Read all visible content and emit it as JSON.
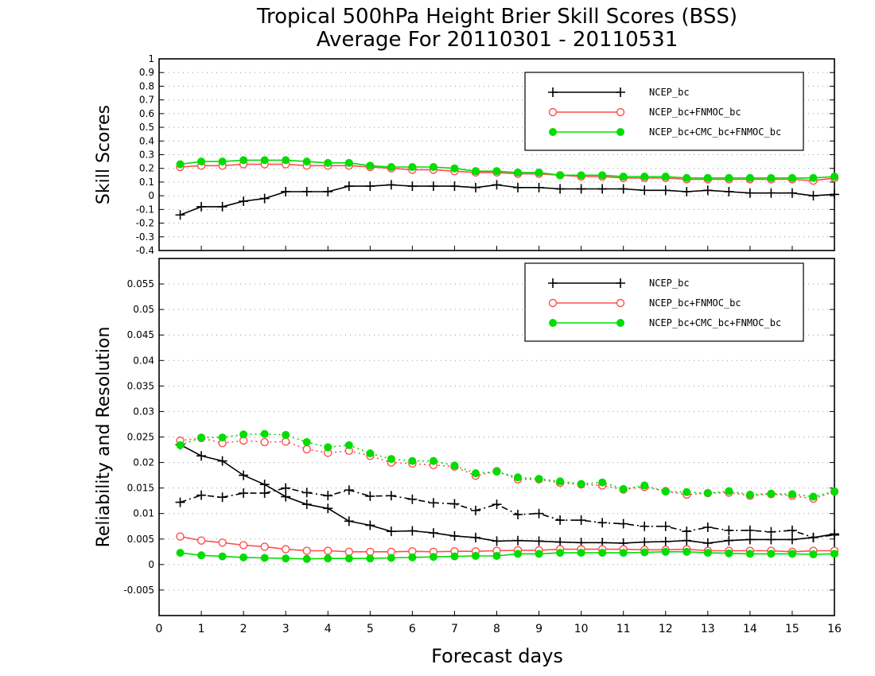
{
  "chart_data": {
    "title_line1": "Tropical 500hPa Height Brier Skill Scores (BSS)",
    "title_line2": "Average For 20110301 - 20110531",
    "xlabel": "Forecast days",
    "x_ticks": [
      "0",
      "1",
      "2",
      "3",
      "4",
      "5",
      "6",
      "7",
      "8",
      "9",
      "10",
      "11",
      "12",
      "13",
      "14",
      "15",
      "16"
    ],
    "xlim": [
      0,
      16
    ],
    "x": [
      0.5,
      1,
      1.5,
      2,
      2.5,
      3,
      3.5,
      4,
      4.5,
      5,
      5.5,
      6,
      6.5,
      7,
      7.5,
      8,
      8.5,
      9,
      9.5,
      10,
      10.5,
      11,
      11.5,
      12,
      12.5,
      13,
      13.5,
      14,
      14.5,
      15,
      15.5,
      16
    ],
    "colors": {
      "NCEP_bc": "#000000",
      "NCEP_bc+FNMOC_bc": "#ff4d4d",
      "NCEP_bc+CMC_bc+FNMOC_bc": "#00dd00"
    },
    "panels": [
      {
        "type": "line",
        "ylabel": "Skill Scores",
        "ylim": [
          -0.4,
          1
        ],
        "y_ticks": [
          "-0.4",
          "-0.3",
          "-0.2",
          "-0.1",
          "0",
          "0.1",
          "0.2",
          "0.3",
          "0.4",
          "0.5",
          "0.6",
          "0.7",
          "0.8",
          "0.9",
          "1"
        ],
        "grid": true,
        "legend": [
          "NCEP_bc",
          "NCEP_bc+FNMOC_bc",
          "NCEP_bc+CMC_bc+FNMOC_bc"
        ],
        "series": [
          {
            "name": "NCEP_bc",
            "marker": "plus",
            "style": "solid",
            "values": [
              -0.14,
              -0.08,
              -0.08,
              -0.04,
              -0.02,
              0.03,
              0.03,
              0.03,
              0.07,
              0.07,
              0.08,
              0.07,
              0.07,
              0.07,
              0.06,
              0.08,
              0.06,
              0.06,
              0.05,
              0.05,
              0.05,
              0.05,
              0.04,
              0.04,
              0.03,
              0.04,
              0.03,
              0.02,
              0.02,
              0.02,
              0.0,
              0.01
            ]
          },
          {
            "name": "NCEP_bc+FNMOC_bc",
            "marker": "circle",
            "style": "solid",
            "values": [
              0.21,
              0.22,
              0.22,
              0.23,
              0.23,
              0.23,
              0.22,
              0.22,
              0.22,
              0.21,
              0.2,
              0.19,
              0.19,
              0.18,
              0.17,
              0.17,
              0.16,
              0.16,
              0.15,
              0.14,
              0.14,
              0.13,
              0.13,
              0.13,
              0.12,
              0.12,
              0.12,
              0.12,
              0.12,
              0.12,
              0.11,
              0.13
            ]
          },
          {
            "name": "NCEP_bc+CMC_bc+FNMOC_bc",
            "marker": "dot",
            "style": "solid",
            "values": [
              0.23,
              0.25,
              0.25,
              0.26,
              0.26,
              0.26,
              0.25,
              0.24,
              0.24,
              0.22,
              0.21,
              0.21,
              0.21,
              0.2,
              0.18,
              0.18,
              0.17,
              0.17,
              0.15,
              0.15,
              0.15,
              0.14,
              0.14,
              0.14,
              0.13,
              0.13,
              0.13,
              0.13,
              0.13,
              0.13,
              0.13,
              0.14
            ]
          }
        ]
      },
      {
        "type": "line",
        "ylabel": "Reliability and Resolution",
        "ylim": [
          -0.01,
          0.06
        ],
        "y_ticks": [
          "-0.005",
          "0",
          "0.005",
          "0.01",
          "0.015",
          "0.02",
          "0.025",
          "0.03",
          "0.035",
          "0.04",
          "0.045",
          "0.05",
          "0.055"
        ],
        "grid": true,
        "legend": [
          "NCEP_bc",
          "NCEP_bc+FNMOC_bc",
          "NCEP_bc+CMC_bc+FNMOC_bc"
        ],
        "series": [
          {
            "name": "NCEP_bc",
            "marker": "plus",
            "style": "solid",
            "values": [
              0.0235,
              0.0213,
              0.0203,
              0.0175,
              0.0157,
              0.0133,
              0.0118,
              0.011,
              0.0085,
              0.0077,
              0.0065,
              0.0066,
              0.0062,
              0.0056,
              0.0053,
              0.0046,
              0.0047,
              0.0046,
              0.0044,
              0.0043,
              0.0043,
              0.0042,
              0.0044,
              0.0045,
              0.0047,
              0.0042,
              0.0047,
              0.0049,
              0.0049,
              0.0049,
              0.0053,
              0.006
            ]
          },
          {
            "name": "NCEP_bc",
            "marker": "plus",
            "style": "dashdot",
            "values": [
              0.0122,
              0.0136,
              0.0132,
              0.014,
              0.014,
              0.015,
              0.0141,
              0.0135,
              0.0146,
              0.0134,
              0.0135,
              0.0128,
              0.0121,
              0.0119,
              0.0106,
              0.0118,
              0.0098,
              0.01,
              0.0087,
              0.0087,
              0.0082,
              0.008,
              0.0075,
              0.0075,
              0.0065,
              0.0073,
              0.0067,
              0.0067,
              0.0064,
              0.0067,
              0.0053,
              0.0058
            ]
          },
          {
            "name": "NCEP_bc+FNMOC_bc",
            "marker": "circle",
            "style": "solid",
            "values": [
              0.0055,
              0.0047,
              0.0043,
              0.0038,
              0.0035,
              0.003,
              0.0027,
              0.0027,
              0.0025,
              0.0025,
              0.0025,
              0.0026,
              0.0025,
              0.0026,
              0.0026,
              0.0027,
              0.0028,
              0.0028,
              0.003,
              0.003,
              0.003,
              0.003,
              0.0029,
              0.0029,
              0.003,
              0.0027,
              0.0027,
              0.0027,
              0.0027,
              0.0025,
              0.0027,
              0.0027
            ]
          },
          {
            "name": "NCEP_bc+FNMOC_bc",
            "marker": "circle",
            "style": "dotted",
            "values": [
              0.0243,
              0.0248,
              0.0238,
              0.0243,
              0.024,
              0.0241,
              0.0226,
              0.0219,
              0.0223,
              0.0213,
              0.02,
              0.0198,
              0.0195,
              0.0192,
              0.0174,
              0.0183,
              0.0167,
              0.0167,
              0.016,
              0.0157,
              0.0155,
              0.0147,
              0.0152,
              0.0144,
              0.0137,
              0.014,
              0.0141,
              0.0135,
              0.0138,
              0.0135,
              0.0129,
              0.0143
            ]
          },
          {
            "name": "NCEP_bc+CMC_bc+FNMOC_bc",
            "marker": "dot",
            "style": "solid",
            "values": [
              0.0023,
              0.0018,
              0.0016,
              0.0014,
              0.0013,
              0.0012,
              0.0011,
              0.0012,
              0.0012,
              0.0012,
              0.0013,
              0.0014,
              0.0015,
              0.0016,
              0.0017,
              0.0017,
              0.0021,
              0.0021,
              0.0023,
              0.0023,
              0.0023,
              0.0023,
              0.0024,
              0.0025,
              0.0025,
              0.0023,
              0.0022,
              0.0021,
              0.0021,
              0.0021,
              0.002,
              0.0021
            ]
          },
          {
            "name": "NCEP_bc+CMC_bc+FNMOC_bc",
            "marker": "dot",
            "style": "dotted",
            "values": [
              0.0234,
              0.0249,
              0.0249,
              0.0255,
              0.0256,
              0.0254,
              0.024,
              0.023,
              0.0234,
              0.0218,
              0.0207,
              0.0203,
              0.0203,
              0.0194,
              0.0179,
              0.0182,
              0.0171,
              0.0168,
              0.0163,
              0.0158,
              0.0161,
              0.0148,
              0.0155,
              0.0143,
              0.0142,
              0.014,
              0.0144,
              0.0137,
              0.0139,
              0.0138,
              0.0133,
              0.0143
            ]
          }
        ]
      }
    ]
  }
}
